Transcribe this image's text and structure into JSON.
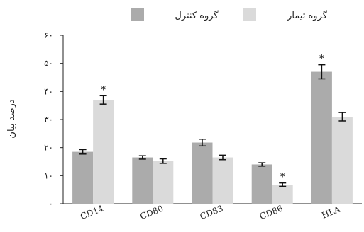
{
  "chart_data": {
    "type": "bar",
    "categories": [
      "CD14",
      "CD80",
      "CD83",
      "CD86",
      "HLA"
    ],
    "series": [
      {
        "name": "گروه کنترل",
        "color": "#ababab",
        "values": [
          18.5,
          16.5,
          21.8,
          14,
          47
        ],
        "errors": [
          0.8,
          0.6,
          1.2,
          0.6,
          2.5
        ],
        "significant": [
          false,
          false,
          false,
          false,
          true
        ]
      },
      {
        "name": "گروه تیمار",
        "color": "#dadada",
        "values": [
          37,
          15.2,
          16.5,
          6.8,
          31
        ],
        "errors": [
          1.5,
          0.8,
          0.8,
          0.6,
          1.5
        ],
        "significant": [
          true,
          false,
          false,
          true,
          false
        ]
      }
    ],
    "yticks": [
      "۰",
      "۱۰",
      "۲۰",
      "۳۰",
      "۴۰",
      "۵۰",
      "۶۰"
    ],
    "ylim": [
      0,
      60
    ],
    "ylabel": "درصد بیان",
    "significance_marker": "*",
    "legend_position": "top"
  }
}
